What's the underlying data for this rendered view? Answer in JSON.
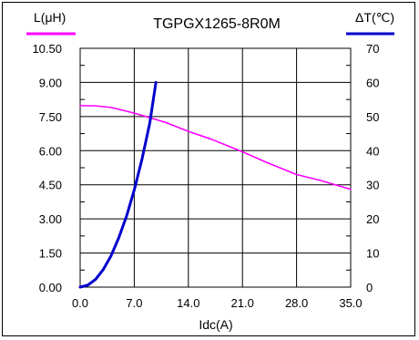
{
  "chart_data": {
    "type": "line",
    "title": "TGPGX1265-8R0M",
    "xlabel": "Idc(A)",
    "ylabel_left": "L(μH)",
    "ylabel_right": "ΔT(℃)",
    "x_ticks": [
      "0.0",
      "7.0",
      "14.0",
      "21.0",
      "28.0",
      "35.0"
    ],
    "y_left_ticks": [
      "0.00",
      "1.50",
      "3.00",
      "4.50",
      "6.00",
      "7.50",
      "9.00",
      "10.50"
    ],
    "y_right_ticks": [
      "0",
      "10",
      "20",
      "30",
      "40",
      "50",
      "60",
      "70"
    ],
    "xlim": [
      0,
      35
    ],
    "ylim_left": [
      0,
      10.5
    ],
    "ylim_right": [
      0,
      70
    ],
    "grid": true,
    "colors": {
      "inductance": "#ff00ff",
      "temperature": "#0000cc"
    },
    "series": [
      {
        "axis": "left",
        "color": "#ff00ff",
        "x": [
          0,
          2,
          4,
          5,
          7,
          9,
          11,
          14,
          17,
          21,
          24,
          28,
          31,
          35
        ],
        "y": [
          7.98,
          7.97,
          7.9,
          7.82,
          7.65,
          7.45,
          7.25,
          6.85,
          6.5,
          5.95,
          5.5,
          4.95,
          4.7,
          4.3
        ]
      },
      {
        "axis": "right",
        "color": "#0000cc",
        "x": [
          0,
          1,
          2,
          3,
          4,
          5,
          6,
          7,
          8,
          9,
          9.8
        ],
        "y": [
          0,
          0.6,
          2.3,
          5.2,
          9.2,
          14.5,
          20.8,
          28.5,
          37.5,
          48,
          60
        ]
      }
    ]
  }
}
